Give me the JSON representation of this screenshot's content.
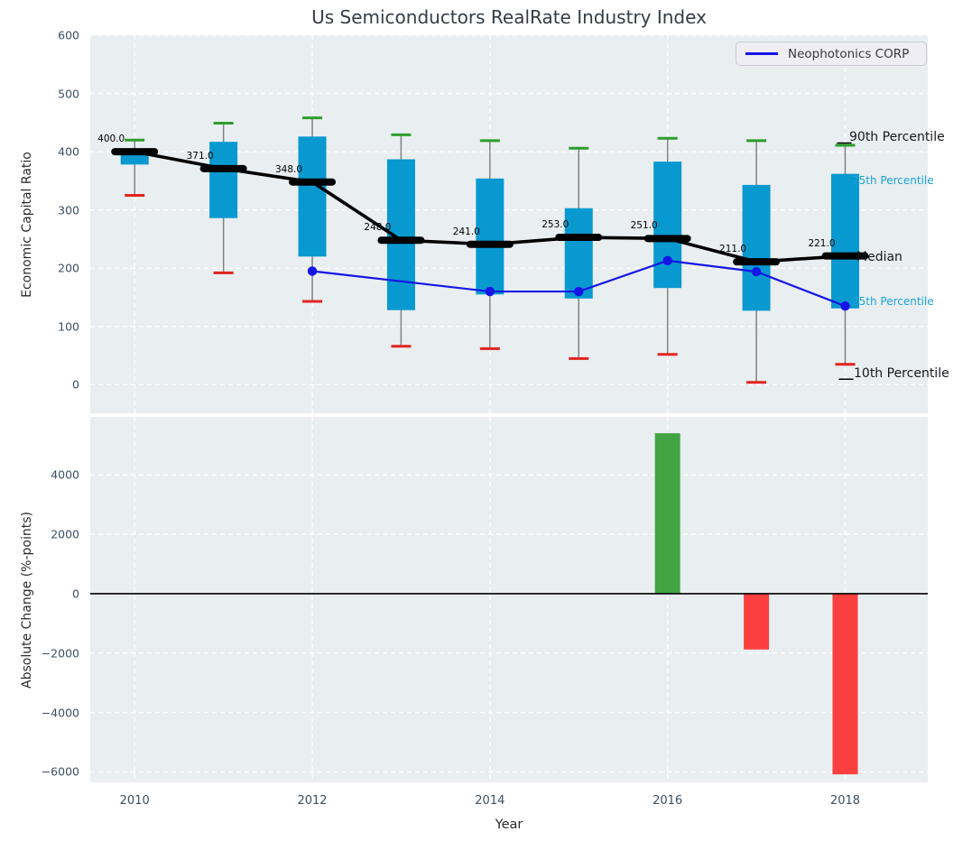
{
  "figure": {
    "title": "Us Semiconductors RealRate Industry Index",
    "legend": {
      "label": "Neophotonics CORP"
    },
    "annotations": {
      "p90": "90th Percentile",
      "p75": "75th Percentile",
      "median": "Median",
      "p25": "25th Percentile",
      "p10": "10th Percentile"
    }
  },
  "chart_data": [
    {
      "type": "boxplot",
      "title": "Us Semiconductors RealRate Industry Index",
      "ylabel": "Economic Capital Ratio",
      "xlim": [
        2009.5,
        2018.93
      ],
      "ylim": [
        -49,
        600
      ],
      "yticks": [
        0,
        100,
        200,
        300,
        400,
        500,
        600
      ],
      "xticks": [
        2010,
        2012,
        2014,
        2016,
        2018
      ],
      "grid": true,
      "legend_position": "upper right",
      "years": [
        2010,
        2011,
        2012,
        2013,
        2014,
        2015,
        2016,
        2017,
        2018
      ],
      "series": {
        "p90": [
          420,
          449,
          458,
          429,
          419,
          406,
          423,
          419,
          411
        ],
        "p75": [
          403,
          417,
          426,
          387,
          354,
          303,
          383,
          343,
          362
        ],
        "median": [
          400,
          371,
          348,
          248,
          241,
          253,
          251,
          211,
          221
        ],
        "p25": [
          378,
          286,
          220,
          128,
          155,
          148,
          166,
          127,
          131
        ],
        "p10": [
          325,
          192,
          143,
          66,
          62,
          45,
          52,
          4,
          35
        ]
      },
      "median_labels": [
        "400.0",
        "371.0",
        "348.0",
        "248.0",
        "241.0",
        "253.0",
        "251.0",
        "211.0",
        "221.0"
      ],
      "company_line": {
        "name": "Neophotonics CORP",
        "x": [
          2012,
          2014,
          2015,
          2016,
          2017,
          2018
        ],
        "y": [
          195,
          160,
          160,
          213,
          194,
          135
        ]
      }
    },
    {
      "type": "bar",
      "ylabel": "Absolute Change (%-points)",
      "xlabel": "Year",
      "xlim": [
        2009.5,
        2018.93
      ],
      "ylim": [
        -6350,
        5950
      ],
      "yticks": [
        -6000,
        -4000,
        -2000,
        0,
        2000,
        4000
      ],
      "xticks": [
        2010,
        2012,
        2014,
        2016,
        2018
      ],
      "grid": true,
      "zero_line": true,
      "bars": [
        {
          "x": 2016,
          "value": 5400,
          "color_role": "positive"
        },
        {
          "x": 2017,
          "value": -1880,
          "color_role": "negative"
        },
        {
          "x": 2018,
          "value": -6080,
          "color_role": "negative"
        }
      ]
    }
  ],
  "colors": {
    "plot_bg": "#e9eef0",
    "grid": "#ffffff",
    "box_fill": "#0999d1",
    "whisker": "#808080",
    "cap_top": "#2d9e2d",
    "cap_bottom": "#e12420",
    "median": "#000000",
    "company_line": "#1515e6",
    "bar_positive": "#43a443",
    "bar_negative": "#fb3f3f",
    "tick_label": "#3c4f63",
    "zero_line": "#000000"
  }
}
